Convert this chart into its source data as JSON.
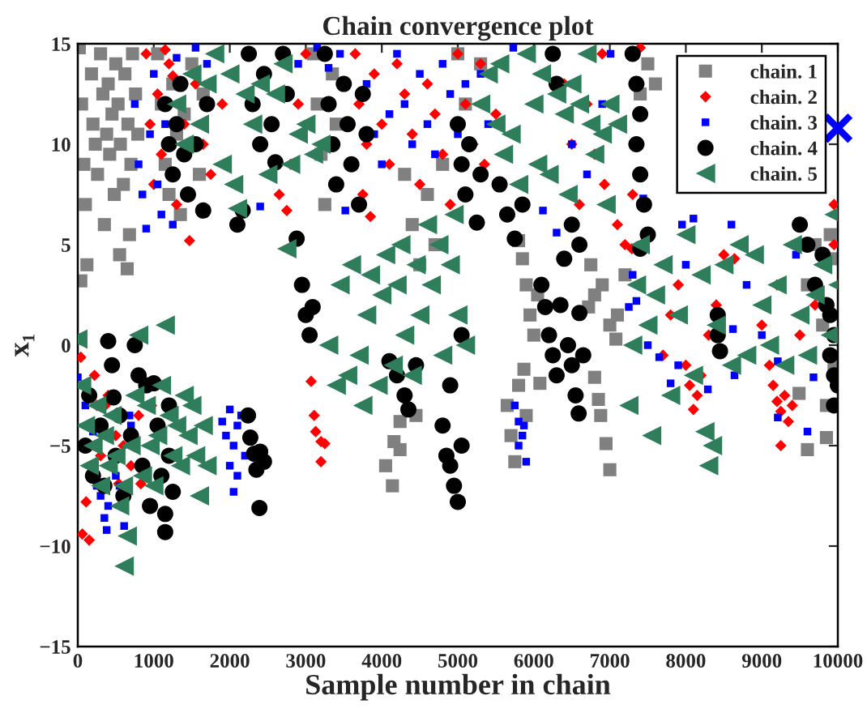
{
  "chart_data": {
    "type": "scatter",
    "title": "Chain convergence plot",
    "xlabel": "Sample number in chain",
    "ylabel": "x₁",
    "xlim": [
      0,
      10000
    ],
    "ylim": [
      -15,
      15
    ],
    "xticks": [
      0,
      1000,
      2000,
      3000,
      4000,
      5000,
      6000,
      7000,
      8000,
      9000,
      10000
    ],
    "yticks": [
      -15,
      -10,
      -5,
      0,
      5,
      10,
      15
    ],
    "legend": "top right",
    "series": [
      {
        "name": "chain. 1",
        "color": "#808080",
        "marker": "square",
        "x": [
          20,
          50,
          80,
          100,
          120,
          40,
          180,
          200,
          230,
          260,
          300,
          330,
          350,
          380,
          400,
          420,
          450,
          480,
          500,
          530,
          550,
          560,
          600,
          620,
          650,
          660,
          680,
          700,
          720,
          760,
          790,
          1050,
          1100,
          1150,
          1200,
          1250,
          1300,
          1350,
          1400,
          1500,
          1600,
          1650,
          3100,
          3150,
          3200,
          3250,
          3350,
          3400,
          4050,
          4140,
          4160,
          4240,
          4240,
          4450,
          4300,
          4400,
          4500,
          4600,
          4700,
          4800,
          5000,
          5100,
          5300,
          5650,
          5700,
          5750,
          5800,
          5870,
          5900,
          5800,
          5850,
          5900,
          5950,
          6000,
          6050,
          6080,
          6720,
          6750,
          6800,
          6800,
          6850,
          6880,
          6900,
          6950,
          7000,
          7000,
          7080,
          7100,
          7200,
          7600,
          7400,
          7500,
          9490,
          9600,
          9850,
          9850,
          9950,
          9600,
          9700,
          9900,
          9950,
          9800
        ],
        "values": [
          14.8,
          12,
          9,
          7,
          4,
          3.2,
          13.5,
          11,
          10,
          8.5,
          14.5,
          12.5,
          6,
          10.5,
          13,
          9.5,
          11.5,
          7.5,
          14,
          12,
          4.5,
          10,
          8,
          13.5,
          3.8,
          11,
          5.5,
          9,
          14.5,
          12.5,
          10.5,
          14.5,
          12,
          9,
          7.5,
          13,
          10.5,
          6.5,
          11.5,
          14,
          8.5,
          12.5,
          14.5,
          12,
          9.5,
          7,
          13.5,
          11,
          -6,
          -7,
          -4.8,
          -3.8,
          -5.2,
          -3.5,
          8.5,
          6,
          4,
          7.5,
          5,
          9,
          14.5,
          12,
          14,
          -3,
          -4.5,
          -5.8,
          -2,
          -1.2,
          -3.5,
          5.2,
          4.3,
          3,
          1.5,
          0.5,
          2.5,
          -1.9,
          1.9,
          4,
          2.5,
          -1.6,
          -2.7,
          -3.5,
          3,
          -4.9,
          -6.2,
          1,
          0.3,
          1.5,
          3.5,
          13,
          12.5,
          14,
          -2.4,
          -5.2,
          -3,
          -4.6,
          -1,
          3,
          5,
          5.5,
          4.3,
          1
        ]
      },
      {
        "name": "chain. 2",
        "color": "#ff0000",
        "marker": "diamond",
        "x": [
          40,
          60,
          150,
          110,
          220,
          250,
          300,
          360,
          400,
          500,
          540,
          600,
          700,
          830,
          800,
          970,
          900,
          950,
          1000,
          1050,
          1100,
          1150,
          1200,
          1250,
          1300,
          1400,
          1470,
          1550,
          1650,
          1750,
          1900,
          2650,
          2750,
          2800,
          2900,
          3000,
          3070,
          3110,
          3130,
          3200,
          3250,
          3200,
          3650,
          3700,
          3750,
          3800,
          3850,
          3900,
          4000,
          4100,
          4200,
          4300,
          4400,
          4500,
          4600,
          4700,
          4800,
          4900,
          5000,
          5100,
          5200,
          5300,
          5350,
          5500,
          6400,
          6500,
          6600,
          6700,
          6800,
          6900,
          6930,
          7100,
          7200,
          7290,
          7300,
          7400,
          7700,
          7800,
          7900,
          8000,
          8050,
          8100,
          8150,
          8200,
          8300,
          8400,
          8500,
          8640,
          9100,
          9150,
          9200,
          9250,
          9300,
          9350,
          9400,
          9250,
          9000,
          9200,
          9500,
          9700,
          9950,
          9950
        ],
        "values": [
          -0.6,
          -9.4,
          -9.7,
          -7.8,
          -1.5,
          -3,
          -5.5,
          -3,
          -2.5,
          -4.5,
          -6.9,
          -5,
          -6,
          -6.9,
          -3.5,
          -3,
          14.5,
          11,
          8,
          12.5,
          9.5,
          14.7,
          14,
          13.4,
          7,
          11,
          5.2,
          13,
          10,
          8.5,
          12,
          7.5,
          6.7,
          9,
          12,
          14.5,
          -1.8,
          -3.5,
          -4.3,
          -4.8,
          -4.9,
          -5.8,
          14.5,
          12,
          7.5,
          10,
          6.4,
          13.5,
          11,
          9,
          14,
          12.5,
          10.5,
          8,
          13,
          11.5,
          9.5,
          7,
          14.5,
          12,
          10,
          14,
          9,
          11.5,
          13,
          10,
          7,
          12,
          9.5,
          14.5,
          8,
          6,
          5,
          4.8,
          7.5,
          14.8,
          -0.5,
          1.5,
          3,
          -1,
          -2,
          -3.2,
          -2.5,
          -1.5,
          0.5,
          2,
          4.5,
          4.3,
          -1,
          -2,
          -2.8,
          -3.3,
          -2.5,
          -3.8,
          -3,
          -5,
          1,
          3,
          0.5,
          2,
          7,
          5
        ]
      },
      {
        "name": "chain. 3",
        "color": "#0000ff",
        "marker": "square",
        "x": [
          0,
          100,
          200,
          250,
          300,
          350,
          380,
          400,
          450,
          500,
          550,
          610,
          680,
          700,
          1900,
          1950,
          2000,
          2000,
          2050,
          2050,
          2100,
          2100,
          2150,
          2200,
          750,
          800,
          850,
          900,
          950,
          1000,
          1050,
          1100,
          1150,
          1250,
          1300,
          1550,
          1700,
          2400,
          2900,
          3150,
          3300,
          3450,
          3520,
          3800,
          3900,
          4000,
          4100,
          4200,
          4300,
          4400,
          4500,
          4600,
          4700,
          4800,
          4900,
          5000,
          5100,
          5300,
          5400,
          5730,
          6120,
          6300,
          6500,
          6700,
          6900,
          7010,
          7440,
          7950,
          8100,
          8600,
          5750,
          5800,
          5850,
          5800,
          5870,
          5900,
          7250,
          7300,
          7350,
          7500,
          7650,
          7800,
          7900,
          8000,
          8290,
          8620,
          8640,
          8800,
          9000,
          9210,
          9210,
          9450,
          9600,
          9680,
          9800
        ],
        "values": [
          -1.6,
          -3,
          -4.3,
          -7,
          -7.5,
          -8.6,
          -9.2,
          -8,
          -5.5,
          -6.5,
          -7,
          -9,
          -3.5,
          -4,
          -3.8,
          -4.5,
          -3.2,
          -6,
          -5,
          -7.3,
          -4,
          -6.5,
          -3.5,
          -5.5,
          12,
          9,
          7.5,
          5.8,
          10.5,
          13.5,
          8,
          6.5,
          11,
          6,
          14.3,
          14.8,
          14,
          6.9,
          14,
          14.8,
          13.8,
          14.5,
          6.7,
          13,
          10.5,
          9,
          11.5,
          14.5,
          12,
          10,
          13.5,
          11,
          9.5,
          14,
          12.5,
          10.5,
          13,
          13.5,
          11,
          14.8,
          6.7,
          5.6,
          10,
          8.5,
          12,
          14.5,
          7.3,
          6,
          6.3,
          6,
          -3,
          -3.8,
          -4.5,
          -5,
          -4,
          -5.8,
          1.9,
          3.5,
          2.2,
          0,
          -0.6,
          -1.9,
          -1,
          4,
          -2.2,
          0.8,
          -1.5,
          3,
          0.5,
          -0.8,
          -3.6,
          4.5,
          -4.3,
          -1.6,
          2
        ]
      },
      {
        "name": "chain. 4",
        "color": "#000000",
        "marker": "circle",
        "x": [
          100,
          150,
          200,
          300,
          350,
          400,
          450,
          470,
          500,
          550,
          600,
          700,
          750,
          800,
          850,
          900,
          950,
          1000,
          1050,
          1100,
          1150,
          1150,
          1200,
          1250,
          1200,
          2240,
          2270,
          2320,
          2350,
          2400,
          2450,
          2390,
          1150,
          1200,
          1250,
          1300,
          1350,
          1400,
          1450,
          1550,
          1650,
          1700,
          2100,
          2170,
          2250,
          2300,
          2400,
          2450,
          2550,
          2600,
          2700,
          2750,
          2880,
          2950,
          3000,
          3050,
          3090,
          3250,
          3300,
          3350,
          3400,
          3500,
          3550,
          3600,
          3700,
          3750,
          3800,
          4100,
          4200,
          4300,
          4350,
          4450,
          4800,
          4850,
          4900,
          4950,
          5000,
          5050,
          4900,
          5050,
          5000,
          5050,
          5100,
          5150,
          5250,
          5300,
          5550,
          5650,
          5750,
          5850,
          6100,
          6150,
          6200,
          6250,
          6300,
          6350,
          6400,
          6450,
          6500,
          6550,
          6590,
          6600,
          6650,
          6500,
          6600,
          6250,
          6300,
          7300,
          7350,
          7400,
          7350,
          7400,
          7450,
          7500,
          7400,
          8420,
          8420,
          8450,
          9500,
          9600,
          9700,
          9800,
          9850,
          9900,
          9950,
          9900,
          9950,
          10000,
          9950
        ],
        "values": [
          -5,
          -2.5,
          -6.5,
          -4,
          -7,
          0.2,
          -1,
          -2.6,
          -5.5,
          -3.5,
          -7.5,
          -4.5,
          0,
          -1.5,
          -6,
          -2,
          -8,
          -1.9,
          -4,
          -6.5,
          -8.4,
          -9.3,
          -5.5,
          -7.3,
          -3,
          -3.5,
          -4.6,
          -5.4,
          -6.2,
          -5.3,
          -5.8,
          -8.1,
          12,
          10,
          8.5,
          11,
          13,
          9.5,
          7.5,
          10,
          6.7,
          12,
          6,
          6.7,
          14.5,
          12,
          10,
          13.5,
          11,
          9.1,
          14.5,
          12.5,
          5.3,
          3,
          1.5,
          0.5,
          1.9,
          14.5,
          12,
          10,
          8,
          13,
          11,
          9,
          7,
          12.5,
          10.5,
          -0.8,
          -1.5,
          -2.5,
          -3.2,
          -1,
          -4,
          -5.5,
          -6,
          -7,
          -7.8,
          -5,
          -2,
          0.5,
          11,
          9,
          7.5,
          10,
          6.1,
          8.5,
          8,
          6.5,
          5.3,
          7,
          3,
          1.9,
          0.5,
          -0.5,
          -1.5,
          2,
          4.3,
          0,
          -1,
          -2.5,
          -3.4,
          1.6,
          -0.5,
          6,
          5,
          14.5,
          13,
          14.5,
          13,
          11.5,
          10,
          8.5,
          7,
          5.5,
          4.8,
          1.5,
          0.5,
          -0.3,
          6,
          5,
          3,
          4.5,
          2,
          1.5,
          0.5,
          -0.5,
          -1.5,
          -2,
          -3
        ]
      },
      {
        "name": "chain. 5",
        "color": "#2e7d5b",
        "marker": "triangle",
        "x": [
          0,
          50,
          100,
          150,
          200,
          250,
          300,
          350,
          400,
          450,
          500,
          550,
          600,
          610,
          650,
          700,
          750,
          800,
          850,
          900,
          950,
          1000,
          1050,
          1100,
          1150,
          1200,
          1250,
          1300,
          1350,
          1400,
          1450,
          1500,
          1550,
          1600,
          1650,
          1700,
          1300,
          1400,
          1500,
          1600,
          1700,
          1800,
          1900,
          2000,
          2050,
          2100,
          2200,
          2300,
          2400,
          2500,
          2600,
          2700,
          2800,
          2900,
          3000,
          3100,
          3200,
          2750,
          3300,
          3400,
          3450,
          3550,
          3600,
          3700,
          3750,
          3800,
          3850,
          3950,
          4000,
          4050,
          4150,
          4200,
          4250,
          4300,
          4400,
          4450,
          4500,
          4600,
          4650,
          4750,
          4800,
          4900,
          4950,
          5000,
          5100,
          5300,
          5400,
          5500,
          5550,
          5600,
          5700,
          5800,
          5900,
          6000,
          6050,
          6100,
          6200,
          6300,
          6400,
          6450,
          6500,
          6600,
          6700,
          6750,
          6800,
          6900,
          6950,
          7000,
          7100,
          7250,
          7300,
          7350,
          7400,
          7500,
          7550,
          7600,
          7700,
          7800,
          7900,
          8000,
          8100,
          8200,
          8250,
          8300,
          8350,
          8400,
          8500,
          8600,
          8700,
          8800,
          8900,
          9000,
          9100,
          9200,
          9300,
          9400,
          9500,
          9600,
          9700,
          9800,
          9900,
          9950,
          10000
        ],
        "values": [
          0.3,
          -2,
          -4,
          -6,
          -5,
          -3,
          -7,
          -4.5,
          -6,
          -3.5,
          -5.5,
          -8,
          -7,
          -11,
          -9.5,
          -5,
          -2.5,
          0.5,
          -6.5,
          -3,
          -5,
          -7,
          -4.5,
          -2,
          1,
          -3.5,
          -5.5,
          -4,
          -6,
          -2.5,
          -4.5,
          -3,
          -5.5,
          -7.5,
          -4,
          -6,
          12,
          10,
          13.5,
          11,
          13,
          14.5,
          9,
          13.5,
          8,
          6.8,
          12.5,
          11,
          13,
          8.5,
          12.5,
          14,
          9,
          10.5,
          11,
          9.5,
          10,
          4.8,
          0,
          -2,
          3,
          -1.5,
          4,
          -0.5,
          -3,
          1.5,
          3.5,
          -2,
          2.5,
          4.5,
          -1,
          3,
          5,
          0.5,
          -1.5,
          4,
          1.5,
          6,
          3,
          5,
          -0.5,
          4,
          6.5,
          1.5,
          0,
          12,
          13.5,
          11,
          14,
          9.5,
          10.5,
          8,
          14.5,
          12,
          9,
          13.5,
          8.5,
          12.5,
          11.5,
          7.5,
          13,
          12,
          14.5,
          11,
          9.5,
          10.5,
          7,
          12,
          11,
          -3,
          0,
          3,
          5,
          1,
          -4.5,
          2.5,
          4,
          -2.5,
          1.5,
          5.5,
          -1.5,
          3.5,
          -4.3,
          -6,
          -5,
          1,
          4,
          -1,
          5,
          -0.5,
          4.5,
          2,
          0,
          3,
          -1,
          5,
          1.5,
          -0.5,
          2.5,
          4,
          0.5,
          6.5,
          3
        ]
      },
      {
        "color": "#0000ff",
        "marker": "cross",
        "x": [
          10000
        ],
        "values": [
          10.8
        ]
      }
    ]
  }
}
